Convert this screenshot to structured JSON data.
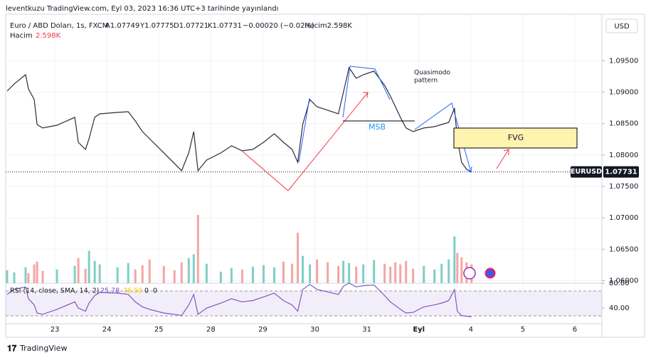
{
  "header": {
    "published": "leventkuzu TradingView.com, Eyl 03, 2023 16:36 UTC+3 tarihinde yayınlandı",
    "symbol": "Euro / ABD Doları, 1s, FXCM",
    "open": "A1.07749",
    "high": "Y1.07775",
    "low": "D1.07721",
    "close": "K1.07731",
    "change": "−0.00020 (−0.02%)",
    "volume": "Hacim2.598K",
    "volume_label": "Hacim",
    "volume_value": "2.598K",
    "currency": "USD",
    "rsi_label": "RSI (14, close, SMA, 14, 2)",
    "rsi_value": "25.78",
    "rsi_ma": "36.50",
    "rsi_extra1": "0",
    "rsi_extra2": "0"
  },
  "annotations": {
    "quasimodo": [
      "Quasimodo",
      "pattern"
    ],
    "msb": "MSB",
    "fvg": "FVG"
  },
  "footer": "TradingView",
  "chart_data": [
    {
      "type": "line",
      "x": [
        -0.918,
        -0.781,
        -0.562,
        -0.507,
        -0.397,
        -0.342,
        -0.233,
        0.041,
        0.384,
        0.452,
        0.589,
        0.658,
        0.767,
        0.863,
        1.205,
        1.411,
        1.548,
        1.685,
        1.822,
        2.096,
        2.301,
        2.438,
        2.575,
        2.671,
        2.753,
        2.918,
        3.192,
        3.397,
        3.603,
        3.808,
        4.014,
        4.219,
        4.397,
        4.562,
        4.671,
        4.767,
        4.904,
        5.041,
        5.247,
        5.452,
        5.548,
        5.658,
        5.795,
        5.932,
        6.137,
        6.342,
        6.452,
        6.548,
        6.644,
        6.753,
        6.89,
        7.096,
        7.301,
        7.438,
        7.575,
        7.685,
        7.74,
        7.822,
        7.918,
        8.014
      ],
      "xlim": [
        -0.945,
        10.52
      ],
      "xticks": [
        {
          "value": 0,
          "label": "23"
        },
        {
          "value": 1,
          "label": "24"
        },
        {
          "value": 2,
          "label": "25"
        },
        {
          "value": 3,
          "label": "28"
        },
        {
          "value": 4,
          "label": "29"
        },
        {
          "value": 5,
          "label": "30"
        },
        {
          "value": 6,
          "label": "31"
        },
        {
          "value": 7,
          "label": "Eyl"
        },
        {
          "value": 8,
          "label": "4"
        },
        {
          "value": 9,
          "label": "5"
        },
        {
          "value": 10,
          "label": "6"
        }
      ],
      "series": [
        {
          "name": "EURUSD",
          "color": "#2a2e39",
          "values": [
            1.09017,
            1.09131,
            1.09278,
            1.09051,
            1.08882,
            1.08485,
            1.08429,
            1.08474,
            1.08599,
            1.08202,
            1.08089,
            1.08259,
            1.08599,
            1.08655,
            1.08678,
            1.08689,
            1.08542,
            1.08372,
            1.08259,
            1.08033,
            1.07863,
            1.0775,
            1.08033,
            1.08372,
            1.0775,
            1.07919,
            1.08033,
            1.08146,
            1.08067,
            1.08089,
            1.08202,
            1.08338,
            1.08202,
            1.08089,
            1.07885,
            1.08485,
            1.08882,
            1.08768,
            1.08712,
            1.08655,
            1.08995,
            1.09391,
            1.09221,
            1.09278,
            1.09334,
            1.09108,
            1.08938,
            1.08768,
            1.08599,
            1.08429,
            1.08372,
            1.08429,
            1.08451,
            1.08485,
            1.08519,
            1.08746,
            1.08259,
            1.07885,
            1.07772,
            1.07731
          ]
        }
      ],
      "ylim": [
        1.0596,
        1.1024
      ],
      "yticks": [
        {
          "value": 1.06,
          "label": "1.06000"
        },
        {
          "value": 1.065,
          "label": "1.06500"
        },
        {
          "value": 1.07,
          "label": "1.07000"
        },
        {
          "value": 1.075,
          "label": "1.07500"
        },
        {
          "value": 1.08,
          "label": "1.08000"
        },
        {
          "value": 1.085,
          "label": "1.08500"
        },
        {
          "value": 1.09,
          "label": "1.09000"
        },
        {
          "value": 1.095,
          "label": "1.09500"
        }
      ],
      "grid": true,
      "last_value": 1.07731
    },
    {
      "type": "bar",
      "up_color": "#7fcfc6",
      "down_color": "#f5a5a3",
      "values": [
        1800,
        1500,
        2200,
        1400,
        2600,
        3000,
        1700,
        1900,
        2400,
        3500,
        2000,
        4500,
        3100,
        2600,
        2200,
        2800,
        1900,
        2500,
        3300,
        2400,
        1800,
        2900,
        3500,
        4000,
        9500,
        2700,
        1600,
        2100,
        1900,
        2300,
        2500,
        2200,
        3000,
        2700,
        7000,
        3800,
        2600,
        3300,
        2900,
        2400,
        3100,
        2800,
        2300,
        2600,
        3200,
        2700,
        2300,
        2900,
        2600,
        3100,
        2000,
        2400,
        1900,
        2700,
        3300,
        6500,
        4200,
        3600,
        2900,
        2598
      ]
    },
    {
      "type": "line",
      "series": [
        {
          "name": "RSI",
          "color": "#7e57c2",
          "values": [
            62,
            70,
            74,
            55,
            45,
            32,
            30,
            38,
            50,
            40,
            35,
            48,
            60,
            65,
            64,
            62,
            50,
            42,
            38,
            32,
            30,
            28,
            45,
            62,
            30,
            40,
            48,
            55,
            50,
            52,
            58,
            64,
            52,
            45,
            35,
            70,
            78,
            70,
            66,
            62,
            75,
            80,
            74,
            76,
            77,
            60,
            50,
            44,
            38,
            32,
            33,
            42,
            45,
            48,
            52,
            70,
            35,
            28,
            27,
            25.78
          ]
        }
      ],
      "ylim": [
        24,
        80
      ],
      "yticks": [
        {
          "value": 80,
          "label": "80.00"
        },
        {
          "value": 40,
          "label": "40.00"
        }
      ]
    }
  ]
}
